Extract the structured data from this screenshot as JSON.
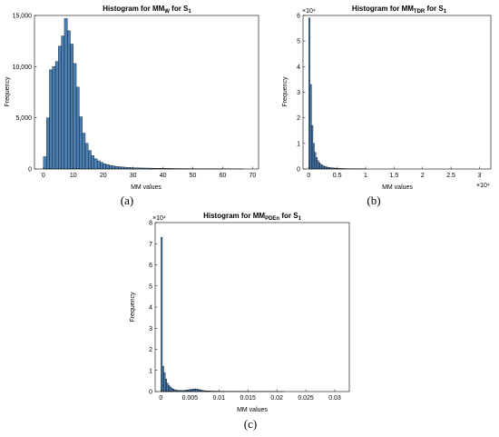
{
  "colors": {
    "bar_fill": "#4a7fb3",
    "bar_edge": "#000000",
    "axes": "#000000",
    "background": "#ffffff"
  },
  "chart_data": [
    {
      "type": "bar",
      "panel": "(a)",
      "title": {
        "main": "Histogram for MM",
        "sub": "W",
        "mid": " for S",
        "sub2": "1"
      },
      "xlabel": "MM values",
      "ylabel": "Frequency",
      "exponent_y": "",
      "exponent_x": "",
      "xlim": [
        -3,
        72
      ],
      "ylim": [
        0,
        15000
      ],
      "xticks": [
        0,
        10,
        20,
        30,
        40,
        50,
        60,
        70
      ],
      "xtick_labels": [
        "0",
        "10",
        "20",
        "30",
        "40",
        "50",
        "60",
        "70"
      ],
      "yticks": [
        0,
        5000,
        10000,
        15000
      ],
      "ytick_labels": [
        "0",
        "5,000",
        "10,000",
        "15,000"
      ],
      "bin_width": 1,
      "bin_start": 0,
      "values": [
        1200,
        5000,
        9700,
        10000,
        10500,
        12000,
        13000,
        14700,
        13500,
        12200,
        10300,
        8000,
        5100,
        3500,
        2500,
        1800,
        1300,
        1000,
        800,
        650,
        520,
        420,
        350,
        300,
        250,
        220,
        190,
        170,
        150,
        130,
        120,
        110,
        100,
        95,
        90,
        85,
        80,
        75,
        70,
        65,
        60,
        56,
        52,
        48,
        45,
        42,
        40,
        38,
        36,
        34,
        32,
        30,
        28,
        26,
        24,
        22,
        20,
        18,
        17,
        16,
        15,
        14,
        13,
        12,
        11,
        10,
        10
      ]
    },
    {
      "type": "bar",
      "panel": "(b)",
      "title": {
        "main": "Histogram for MM",
        "sub": "TDR",
        "mid": " for S",
        "sub2": "1"
      },
      "xlabel": "MM values",
      "ylabel": "Frequency",
      "exponent_y": "×10⁴",
      "exponent_x": "×10⁴",
      "xlim": [
        -0.1,
        3.2
      ],
      "ylim": [
        0,
        6
      ],
      "xticks": [
        0,
        0.5,
        1,
        1.5,
        2,
        2.5,
        3
      ],
      "xtick_labels": [
        "0",
        "0.5",
        "1",
        "1.5",
        "2",
        "2.5",
        "3"
      ],
      "yticks": [
        0,
        1,
        2,
        3,
        4,
        5,
        6
      ],
      "ytick_labels": [
        "0",
        "1",
        "2",
        "3",
        "4",
        "5",
        "6"
      ],
      "bin_width": 0.025,
      "bin_start": 0,
      "values": [
        5.9,
        3.3,
        1.7,
        1.0,
        0.65,
        0.45,
        0.33,
        0.25,
        0.19,
        0.15,
        0.12,
        0.1,
        0.08,
        0.07,
        0.06,
        0.05,
        0.045,
        0.04,
        0.035,
        0.03,
        0.027,
        0.024,
        0.022,
        0.02,
        0.018,
        0.016,
        0.015,
        0.014,
        0.013,
        0.012,
        0.011,
        0.01,
        0.01,
        0.009,
        0.009,
        0.008,
        0.008,
        0.007,
        0.007,
        0.006
      ]
    },
    {
      "type": "bar",
      "panel": "(c)",
      "title": {
        "main": "Histogram for MM",
        "sub": "PDEn",
        "mid": " for S",
        "sub2": "1"
      },
      "xlabel": "MM values",
      "ylabel": "Frequency",
      "exponent_y": "×10⁴",
      "exponent_x": "",
      "xlim": [
        -0.001,
        0.0325
      ],
      "ylim": [
        0,
        8
      ],
      "xticks": [
        0,
        0.005,
        0.01,
        0.015,
        0.02,
        0.025,
        0.03
      ],
      "xtick_labels": [
        "0",
        "0.005",
        "0.01",
        "0.015",
        "0.02",
        "0.025",
        "0.03"
      ],
      "yticks": [
        0,
        1,
        2,
        3,
        4,
        5,
        6,
        7,
        8
      ],
      "ytick_labels": [
        "0",
        "1",
        "2",
        "3",
        "4",
        "5",
        "6",
        "7",
        "8"
      ],
      "bin_width": 0.00025,
      "bin_start": 0,
      "values": [
        7.3,
        1.2,
        0.9,
        0.6,
        0.4,
        0.3,
        0.22,
        0.16,
        0.12,
        0.09,
        0.07,
        0.06,
        0.05,
        0.05,
        0.05,
        0.05,
        0.06,
        0.07,
        0.08,
        0.09,
        0.1,
        0.11,
        0.12,
        0.13,
        0.12,
        0.11,
        0.09,
        0.08,
        0.06,
        0.05,
        0.04,
        0.035,
        0.03,
        0.028,
        0.026,
        0.024,
        0.022,
        0.02,
        0.019,
        0.018,
        0.017,
        0.016,
        0.015,
        0.014,
        0.013,
        0.012,
        0.012,
        0.011,
        0.011,
        0.01,
        0.01,
        0.009,
        0.009,
        0.009,
        0.008,
        0.008,
        0.008,
        0.007,
        0.007,
        0.007,
        0.006,
        0.006,
        0.006,
        0.006,
        0.005,
        0.005,
        0.005,
        0.005,
        0.004,
        0.004,
        0.004,
        0.004,
        0.004,
        0.003,
        0.003,
        0.003,
        0.003,
        0.003,
        0.003,
        0.003,
        0.002,
        0.002,
        0.002,
        0.002,
        0.002
      ]
    }
  ]
}
